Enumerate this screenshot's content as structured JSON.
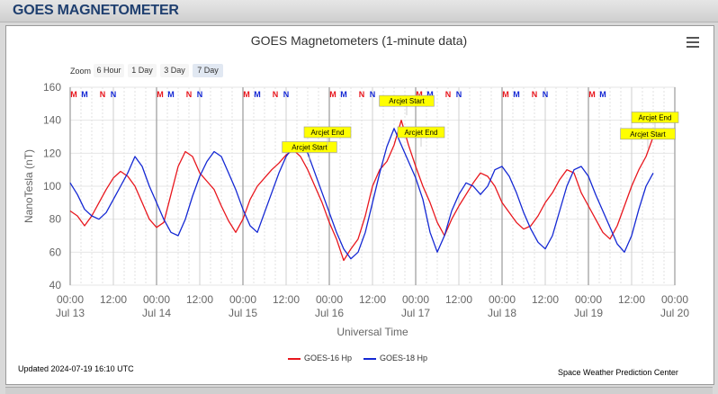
{
  "page": {
    "header_title": "GOES MAGNETOMETER"
  },
  "zoom": {
    "label": "Zoom",
    "buttons": [
      {
        "label": "6 Hour",
        "active": false
      },
      {
        "label": "1 Day",
        "active": false
      },
      {
        "label": "3 Day",
        "active": false
      },
      {
        "label": "7 Day",
        "active": true
      }
    ]
  },
  "footer": {
    "updated": "Updated 2024-07-19 16:10 UTC",
    "credit": "Space Weather Prediction Center"
  },
  "chart_data": {
    "type": "line",
    "title": "GOES Magnetometers (1-minute data)",
    "xlabel": "Universal Time",
    "ylabel": "NanoTesla (nT)",
    "ylim": [
      40,
      160
    ],
    "yticks": [
      40,
      60,
      80,
      100,
      120,
      140,
      160
    ],
    "xlim_hours": [
      0,
      168
    ],
    "xticks": [
      {
        "h": 0,
        "l1": "00:00",
        "l2": "Jul 13"
      },
      {
        "h": 12,
        "l1": "12:00",
        "l2": ""
      },
      {
        "h": 24,
        "l1": "00:00",
        "l2": "Jul 14"
      },
      {
        "h": 36,
        "l1": "12:00",
        "l2": ""
      },
      {
        "h": 48,
        "l1": "00:00",
        "l2": "Jul 15"
      },
      {
        "h": 60,
        "l1": "12:00",
        "l2": ""
      },
      {
        "h": 72,
        "l1": "00:00",
        "l2": "Jul 16"
      },
      {
        "h": 84,
        "l1": "12:00",
        "l2": ""
      },
      {
        "h": 96,
        "l1": "00:00",
        "l2": "Jul 17"
      },
      {
        "h": 108,
        "l1": "12:00",
        "l2": ""
      },
      {
        "h": 120,
        "l1": "00:00",
        "l2": "Jul 18"
      },
      {
        "h": 132,
        "l1": "12:00",
        "l2": ""
      },
      {
        "h": 144,
        "l1": "00:00",
        "l2": "Jul 19"
      },
      {
        "h": 156,
        "l1": "12:00",
        "l2": ""
      },
      {
        "h": 168,
        "l1": "00:00",
        "l2": "Jul 20"
      }
    ],
    "grid": true,
    "legend_position": "bottom-center",
    "series": [
      {
        "name": "GOES-16 Hp",
        "color": "#e8161d",
        "x": [
          0,
          2,
          4,
          6,
          8,
          10,
          12,
          14,
          16,
          18,
          20,
          22,
          24,
          26,
          28,
          30,
          32,
          34,
          36,
          38,
          40,
          42,
          44,
          46,
          48,
          50,
          52,
          54,
          56,
          58,
          60,
          62,
          64,
          66,
          68,
          70,
          72,
          74,
          76,
          78,
          80,
          82,
          84,
          86,
          88,
          90,
          92,
          94,
          96,
          98,
          100,
          102,
          104,
          106,
          108,
          110,
          112,
          114,
          116,
          118,
          120,
          122,
          124,
          126,
          128,
          130,
          132,
          134,
          136,
          138,
          140,
          142,
          144,
          146,
          148,
          150,
          152,
          154,
          156,
          158,
          160,
          162
        ],
        "y": [
          85,
          82,
          76,
          82,
          90,
          98,
          105,
          109,
          106,
          100,
          90,
          80,
          75,
          78,
          95,
          112,
          121,
          118,
          108,
          103,
          98,
          88,
          79,
          72,
          80,
          92,
          100,
          105,
          110,
          114,
          119,
          122,
          118,
          110,
          100,
          90,
          78,
          68,
          55,
          62,
          68,
          82,
          100,
          110,
          115,
          125,
          140,
          125,
          112,
          100,
          90,
          78,
          70,
          80,
          88,
          95,
          102,
          108,
          106,
          100,
          90,
          84,
          78,
          74,
          76,
          82,
          90,
          96,
          104,
          110,
          108,
          96,
          88,
          80,
          72,
          68,
          76,
          88,
          100,
          110,
          118,
          130
        ]
      },
      {
        "name": "GOES-18 Hp",
        "color": "#1428d4",
        "x": [
          0,
          2,
          4,
          6,
          8,
          10,
          12,
          14,
          16,
          18,
          20,
          22,
          24,
          26,
          28,
          30,
          32,
          34,
          36,
          38,
          40,
          42,
          44,
          46,
          48,
          50,
          52,
          54,
          56,
          58,
          60,
          62,
          64,
          66,
          68,
          70,
          72,
          74,
          76,
          78,
          80,
          82,
          84,
          86,
          88,
          90,
          92,
          94,
          96,
          98,
          100,
          102,
          104,
          106,
          108,
          110,
          112,
          114,
          116,
          118,
          120,
          122,
          124,
          126,
          128,
          130,
          132,
          134,
          136,
          138,
          140,
          142,
          144,
          146,
          148,
          150,
          152,
          154,
          156,
          158,
          160,
          162
        ],
        "y": [
          102,
          95,
          86,
          82,
          80,
          84,
          92,
          100,
          108,
          118,
          112,
          100,
          90,
          80,
          72,
          70,
          80,
          94,
          106,
          115,
          121,
          118,
          108,
          98,
          86,
          76,
          72,
          84,
          96,
          108,
          118,
          124,
          126,
          120,
          108,
          96,
          84,
          72,
          62,
          56,
          60,
          72,
          90,
          108,
          124,
          135,
          125,
          115,
          105,
          92,
          72,
          60,
          70,
          85,
          95,
          102,
          100,
          95,
          100,
          110,
          112,
          106,
          96,
          84,
          74,
          66,
          62,
          70,
          85,
          100,
          110,
          112,
          106,
          95,
          85,
          75,
          65,
          60,
          70,
          86,
          100,
          108
        ]
      }
    ],
    "storm_markers": [
      {
        "h": 1,
        "letter": "M",
        "color": "#e8161d"
      },
      {
        "h": 4,
        "letter": "M",
        "color": "#1428d4"
      },
      {
        "h": 9,
        "letter": "N",
        "color": "#e8161d"
      },
      {
        "h": 12,
        "letter": "N",
        "color": "#1428d4"
      },
      {
        "h": 25,
        "letter": "M",
        "color": "#e8161d"
      },
      {
        "h": 28,
        "letter": "M",
        "color": "#1428d4"
      },
      {
        "h": 33,
        "letter": "N",
        "color": "#e8161d"
      },
      {
        "h": 36,
        "letter": "N",
        "color": "#1428d4"
      },
      {
        "h": 49,
        "letter": "M",
        "color": "#e8161d"
      },
      {
        "h": 52,
        "letter": "M",
        "color": "#1428d4"
      },
      {
        "h": 57,
        "letter": "N",
        "color": "#e8161d"
      },
      {
        "h": 60,
        "letter": "N",
        "color": "#1428d4"
      },
      {
        "h": 73,
        "letter": "M",
        "color": "#e8161d"
      },
      {
        "h": 76,
        "letter": "M",
        "color": "#1428d4"
      },
      {
        "h": 81,
        "letter": "N",
        "color": "#e8161d"
      },
      {
        "h": 84,
        "letter": "N",
        "color": "#1428d4"
      },
      {
        "h": 97,
        "letter": "M",
        "color": "#e8161d"
      },
      {
        "h": 100,
        "letter": "M",
        "color": "#1428d4"
      },
      {
        "h": 105,
        "letter": "N",
        "color": "#e8161d"
      },
      {
        "h": 108,
        "letter": "N",
        "color": "#1428d4"
      },
      {
        "h": 121,
        "letter": "M",
        "color": "#e8161d"
      },
      {
        "h": 124,
        "letter": "M",
        "color": "#1428d4"
      },
      {
        "h": 129,
        "letter": "N",
        "color": "#e8161d"
      },
      {
        "h": 132,
        "letter": "N",
        "color": "#1428d4"
      },
      {
        "h": 145,
        "letter": "M",
        "color": "#e8161d"
      },
      {
        "h": 148,
        "letter": "M",
        "color": "#1428d4"
      }
    ],
    "annotations": [
      {
        "text": "Arcjet Start",
        "h": 66.5,
        "y": 115
      },
      {
        "text": "Arcjet End",
        "h": 71.5,
        "y": 124
      },
      {
        "text": "Arcjet Start",
        "h": 93.5,
        "y": 143
      },
      {
        "text": "Arcjet End",
        "h": 97.5,
        "y": 124
      },
      {
        "text": "Arcjet Start",
        "h": 160.5,
        "y": 123
      },
      {
        "text": "Arcjet End",
        "h": 162.5,
        "y": 133
      }
    ]
  }
}
